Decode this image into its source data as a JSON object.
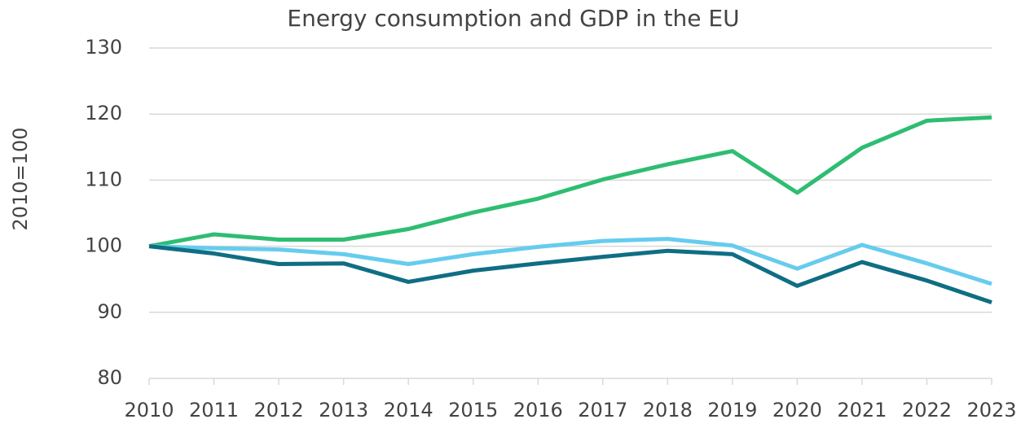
{
  "chart_data": {
    "type": "line",
    "title": "Energy consumption and GDP in the EU",
    "y_label": "2010=100",
    "categories": [
      "2010",
      "2011",
      "2012",
      "2013",
      "2014",
      "2015",
      "2016",
      "2017",
      "2018",
      "2019",
      "2020",
      "2021",
      "2022",
      "2023"
    ],
    "series": [
      {
        "color": "#2ebd72",
        "values": [
          100,
          101.8,
          101.0,
          101.0,
          102.6,
          105.1,
          107.2,
          110.1,
          112.4,
          114.4,
          108.1,
          114.9,
          119.0,
          119.5
        ]
      },
      {
        "color": "#66ccee",
        "values": [
          100,
          99.7,
          99.5,
          98.8,
          97.3,
          98.8,
          99.9,
          100.8,
          101.1,
          100.1,
          96.6,
          100.2,
          97.4,
          94.3
        ]
      },
      {
        "color": "#0f6e84",
        "values": [
          100,
          98.9,
          97.3,
          97.4,
          94.6,
          96.3,
          97.4,
          98.4,
          99.3,
          98.8,
          94.0,
          97.6,
          94.8,
          91.5
        ]
      }
    ],
    "ylim": [
      80,
      130
    ],
    "yticks": [
      80,
      90,
      100,
      110,
      120,
      130
    ],
    "grid": true
  }
}
